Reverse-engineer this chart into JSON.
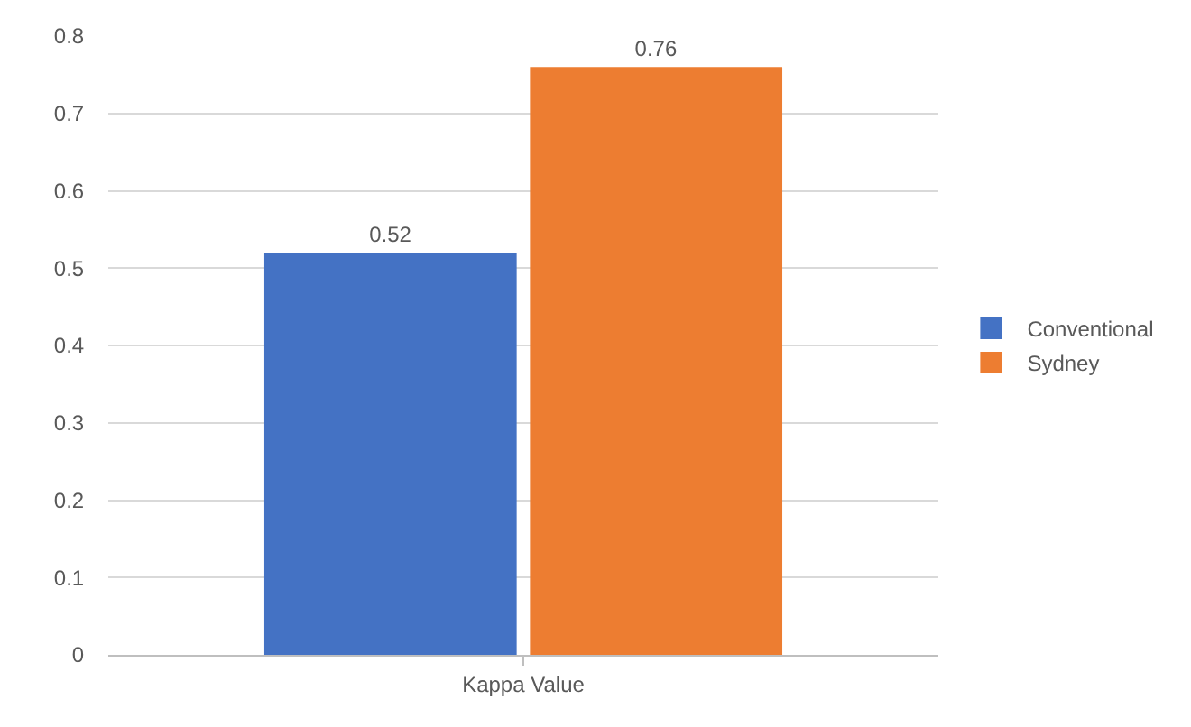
{
  "chart_data": {
    "type": "bar",
    "categories": [
      "Kappa Value"
    ],
    "series": [
      {
        "name": "Conventional",
        "color": "#4472c4",
        "values": [
          0.52
        ]
      },
      {
        "name": "Sydney",
        "color": "#ed7d31",
        "values": [
          0.76
        ]
      }
    ],
    "ylim": [
      0,
      0.8
    ],
    "yticks": [
      0,
      0.1,
      0.2,
      0.3,
      0.4,
      0.5,
      0.6,
      0.7,
      0.8
    ],
    "grid": "y",
    "legend": "right",
    "data_labels": true
  }
}
